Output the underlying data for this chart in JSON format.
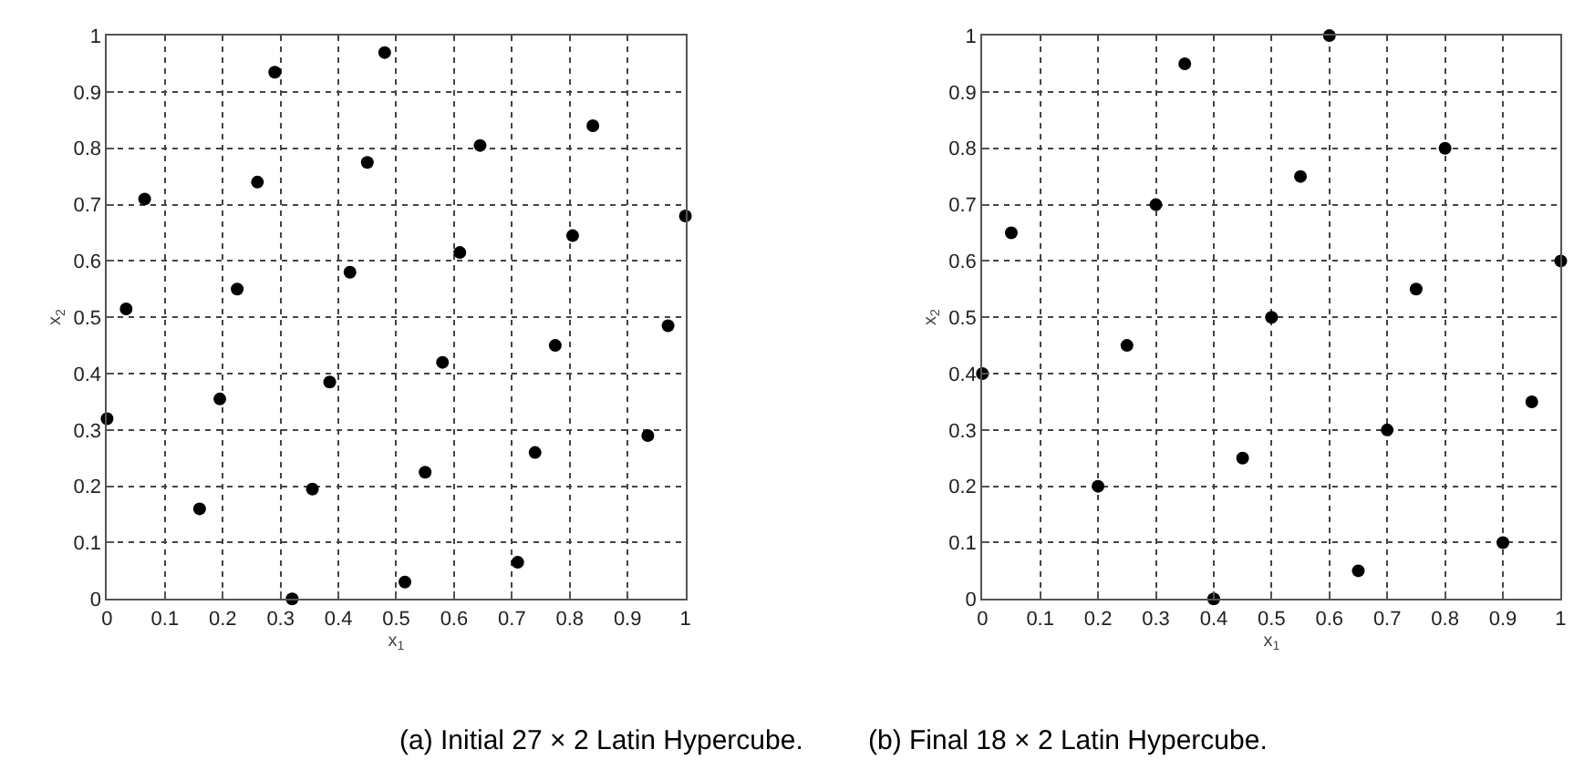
{
  "chart_data": [
    {
      "type": "scatter",
      "title": "(a) Initial 27 × 2 Latin Hypercube.",
      "xlabel": "x$_{1}$",
      "ylabel": "x$_{2}$",
      "x": [
        0,
        0.033,
        0.065,
        0.16,
        0.195,
        0.225,
        0.26,
        0.29,
        0.32,
        0.355,
        0.385,
        0.42,
        0.45,
        0.48,
        0.515,
        0.55,
        0.58,
        0.61,
        0.645,
        0.71,
        0.74,
        0.775,
        0.805,
        0.84,
        0.935,
        0.97,
        1.0
      ],
      "series": [
        {
          "color": "#000000",
          "values": [
            0.32,
            0.515,
            0.71,
            0.16,
            0.355,
            0.55,
            0.74,
            0.935,
            0.0,
            0.195,
            0.385,
            0.58,
            0.775,
            0.97,
            0.03,
            0.225,
            0.42,
            0.615,
            0.805,
            0.065,
            0.26,
            0.45,
            0.645,
            0.84,
            0.29,
            0.485,
            0.68
          ]
        }
      ],
      "xlim": [
        0,
        1
      ],
      "ylim": [
        0,
        1
      ],
      "xticks": [
        0,
        0.1,
        0.2,
        0.3,
        0.4,
        0.5,
        0.6,
        0.7,
        0.8,
        0.9,
        1
      ],
      "yticks": [
        0,
        0.1,
        0.2,
        0.3,
        0.4,
        0.5,
        0.6,
        0.7,
        0.8,
        0.9,
        1
      ],
      "grid": true,
      "marker": "circle"
    },
    {
      "type": "scatter",
      "title": "(b) Final 18 × 2 Latin Hypercube.",
      "xlabel": "x$_{1}$",
      "ylabel": "x$_{2}$",
      "x": [
        0,
        0.05,
        0.2,
        0.25,
        0.3,
        0.35,
        0.4,
        0.45,
        0.5,
        0.55,
        0.6,
        0.65,
        0.7,
        0.75,
        0.8,
        0.9,
        0.95,
        1.0
      ],
      "series": [
        {
          "color": "#000000",
          "values": [
            0.4,
            0.65,
            0.2,
            0.45,
            0.7,
            0.95,
            0.0,
            0.25,
            0.5,
            0.75,
            1.0,
            0.05,
            0.3,
            0.55,
            0.8,
            0.1,
            0.35,
            0.6
          ]
        }
      ],
      "xlim": [
        0,
        1
      ],
      "ylim": [
        0,
        1
      ],
      "xticks": [
        0,
        0.1,
        0.2,
        0.3,
        0.4,
        0.5,
        0.6,
        0.7,
        0.8,
        0.9,
        1
      ],
      "yticks": [
        0,
        0.1,
        0.2,
        0.3,
        0.4,
        0.5,
        0.6,
        0.7,
        0.8,
        0.9,
        1
      ],
      "grid": true,
      "marker": "circle"
    }
  ]
}
